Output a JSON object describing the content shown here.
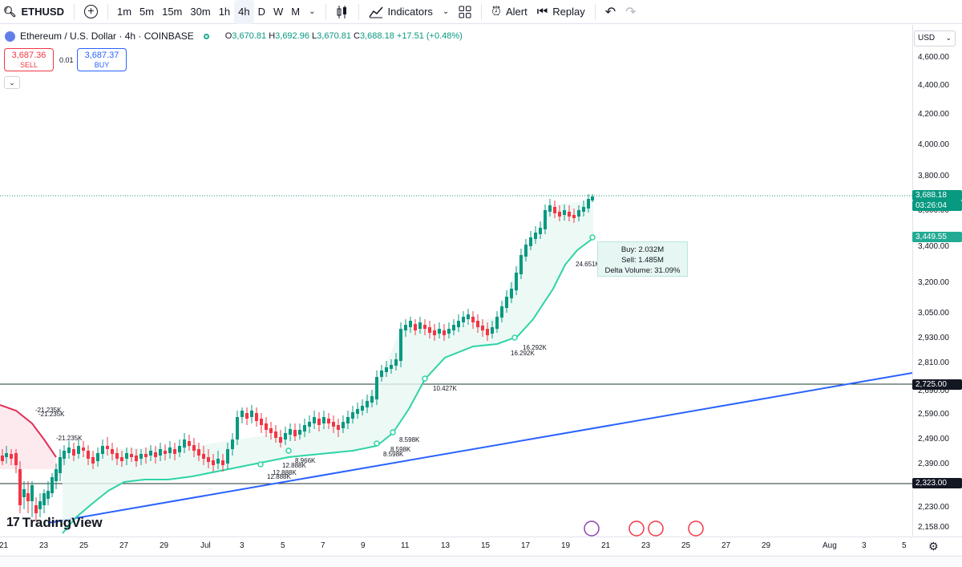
{
  "toolbar": {
    "symbol": "ETHUSD",
    "intervals": [
      "1m",
      "5m",
      "15m",
      "30m",
      "1h",
      "4h",
      "D",
      "W",
      "M"
    ],
    "active_interval": "4h",
    "indicators_label": "Indicators",
    "alert_label": "Alert",
    "replay_label": "Replay"
  },
  "legend": {
    "title": "Ethereum / U.S. Dollar · 4h · COINBASE",
    "o_label": "O",
    "o": "3,670.81",
    "h_label": "H",
    "h": "3,692.96",
    "l_label": "L",
    "l": "3,670.81",
    "c_label": "C",
    "c": "3,688.18",
    "change": "+17.51 (+0.48%)"
  },
  "trade": {
    "sell_price": "3,687.36",
    "sell_label": "SELL",
    "spread": "0.01",
    "buy_price": "3,687.37",
    "buy_label": "BUY"
  },
  "currency": "USD",
  "price_axis": [
    "4,600.00",
    "4,400.00",
    "4,200.00",
    "4,000.00",
    "3,800.00",
    "3,600.00",
    "3,400.00",
    "3,200.00",
    "3,050.00",
    "2,930.00",
    "2,810.00",
    "2,690.00",
    "2,590.00",
    "2,490.00",
    "2,390.00",
    "2,230.00",
    "2,158.00"
  ],
  "price_tags": {
    "last": "3,688.18",
    "countdown": "03:26:04",
    "indicator": "3,449.55",
    "level_upper": "2,725.00",
    "level_lower": "2,323.00"
  },
  "time_axis": [
    "21",
    "23",
    "25",
    "27",
    "29",
    "Jul",
    "3",
    "5",
    "7",
    "9",
    "11",
    "13",
    "15",
    "17",
    "19",
    "21",
    "23",
    "25",
    "27",
    "29",
    "Aug",
    "3",
    "5"
  ],
  "tooltip": {
    "buy": "Buy: 2.032M",
    "sell": "Sell: 1.485M",
    "delta": "Delta Volume: 31.09%"
  },
  "annotations": [
    "-21.235K",
    "-21.235K",
    "-21.235K",
    "12.888K",
    "12.888K",
    "12.888K",
    "8.966K",
    "8.598K",
    "8.598K",
    "8.598K",
    "10.427K",
    "16.292K",
    "16.292K",
    "24.651K"
  ],
  "brand": "TradingView",
  "colors": {
    "up": "#089981",
    "down": "#f23645",
    "accent": "#2962ff",
    "band": "#22ab94"
  }
}
